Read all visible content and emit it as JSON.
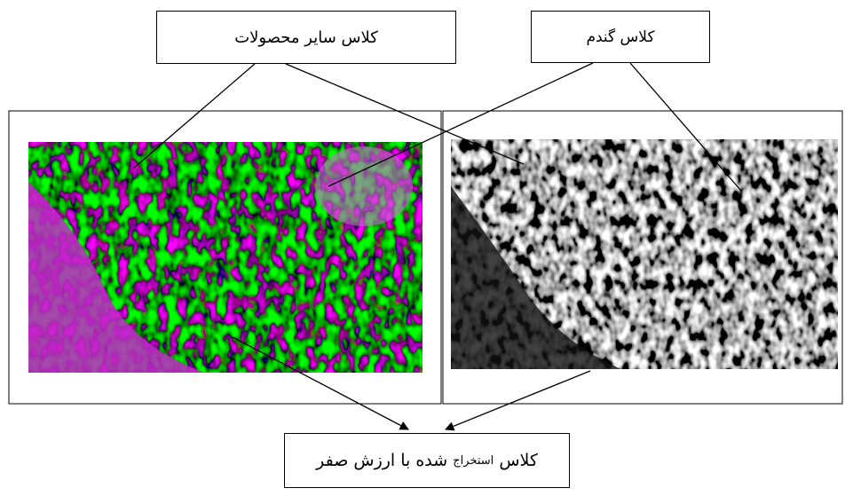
{
  "labels": {
    "other_crops": "کلاس سایر محصولات",
    "wheat": "کلاس گندم"
  },
  "bottom_label": {
    "parts": [
      "کلاس",
      "استخراج",
      "شده با ارزش صفر"
    ]
  }
}
